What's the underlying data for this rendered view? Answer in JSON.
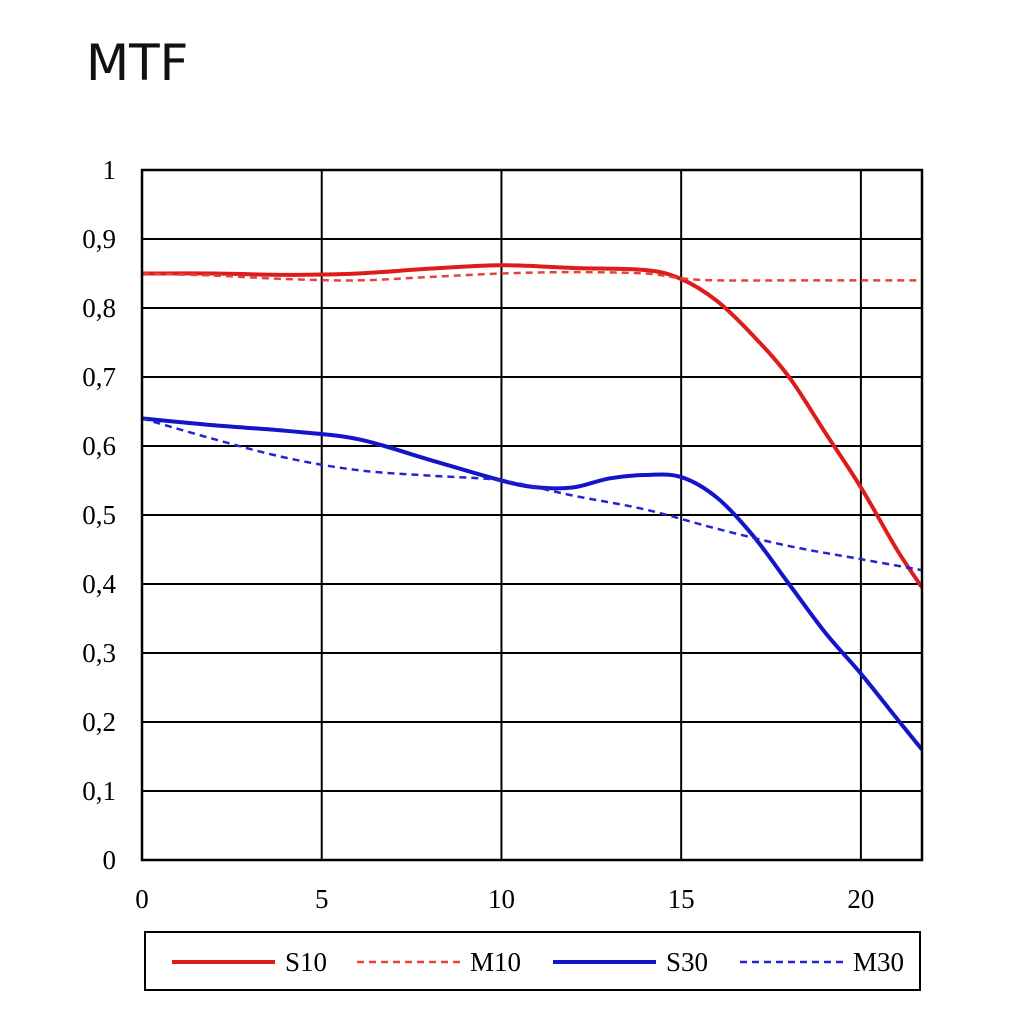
{
  "chart_data": {
    "type": "line",
    "title": "MTF",
    "xlabel": "",
    "ylabel": "",
    "xlim": [
      0,
      21.7
    ],
    "ylim": [
      0,
      1
    ],
    "grid": true,
    "legend_position": "bottom",
    "x_ticks": [
      {
        "value": 0,
        "label": "0"
      },
      {
        "value": 5,
        "label": "5"
      },
      {
        "value": 10,
        "label": "10"
      },
      {
        "value": 15,
        "label": "15"
      },
      {
        "value": 20,
        "label": "20"
      }
    ],
    "y_ticks": [
      {
        "value": 0,
        "label": "0"
      },
      {
        "value": 0.1,
        "label": "0,1"
      },
      {
        "value": 0.2,
        "label": "0,2"
      },
      {
        "value": 0.3,
        "label": "0,3"
      },
      {
        "value": 0.4,
        "label": "0,4"
      },
      {
        "value": 0.5,
        "label": "0,5"
      },
      {
        "value": 0.6,
        "label": "0,6"
      },
      {
        "value": 0.7,
        "label": "0,7"
      },
      {
        "value": 0.8,
        "label": "0,8"
      },
      {
        "value": 0.9,
        "label": "0,9"
      },
      {
        "value": 1,
        "label": "1"
      }
    ],
    "series": [
      {
        "name": "S10",
        "color": "#dd1c1c",
        "dashed": false,
        "x": [
          0,
          2,
          4,
          6,
          8,
          10,
          12,
          14,
          15,
          16,
          17,
          18,
          19,
          20,
          21,
          21.7
        ],
        "y": [
          0.85,
          0.85,
          0.848,
          0.85,
          0.857,
          0.862,
          0.858,
          0.855,
          0.842,
          0.81,
          0.76,
          0.7,
          0.62,
          0.54,
          0.45,
          0.395
        ]
      },
      {
        "name": "M10",
        "color": "#e8403a",
        "dashed": true,
        "x": [
          0,
          2,
          4,
          6,
          8,
          10,
          12,
          14,
          15,
          16,
          18,
          20,
          21.7
        ],
        "y": [
          0.85,
          0.847,
          0.842,
          0.84,
          0.845,
          0.85,
          0.852,
          0.85,
          0.843,
          0.84,
          0.84,
          0.84,
          0.84
        ]
      },
      {
        "name": "S30",
        "color": "#1414c8",
        "dashed": false,
        "x": [
          0,
          2,
          4,
          6,
          8,
          10,
          11,
          12,
          13,
          14,
          15,
          16,
          17,
          18,
          19,
          20,
          21,
          21.7
        ],
        "y": [
          0.64,
          0.63,
          0.622,
          0.61,
          0.58,
          0.55,
          0.54,
          0.54,
          0.553,
          0.558,
          0.555,
          0.525,
          0.47,
          0.4,
          0.33,
          0.27,
          0.205,
          0.16
        ]
      },
      {
        "name": "M30",
        "color": "#2424d0",
        "dashed": true,
        "x": [
          0,
          2,
          4,
          6,
          8,
          10,
          12,
          14,
          16,
          18,
          20,
          21.7
        ],
        "y": [
          0.64,
          0.61,
          0.583,
          0.565,
          0.557,
          0.55,
          0.528,
          0.508,
          0.48,
          0.455,
          0.436,
          0.42
        ]
      }
    ]
  }
}
